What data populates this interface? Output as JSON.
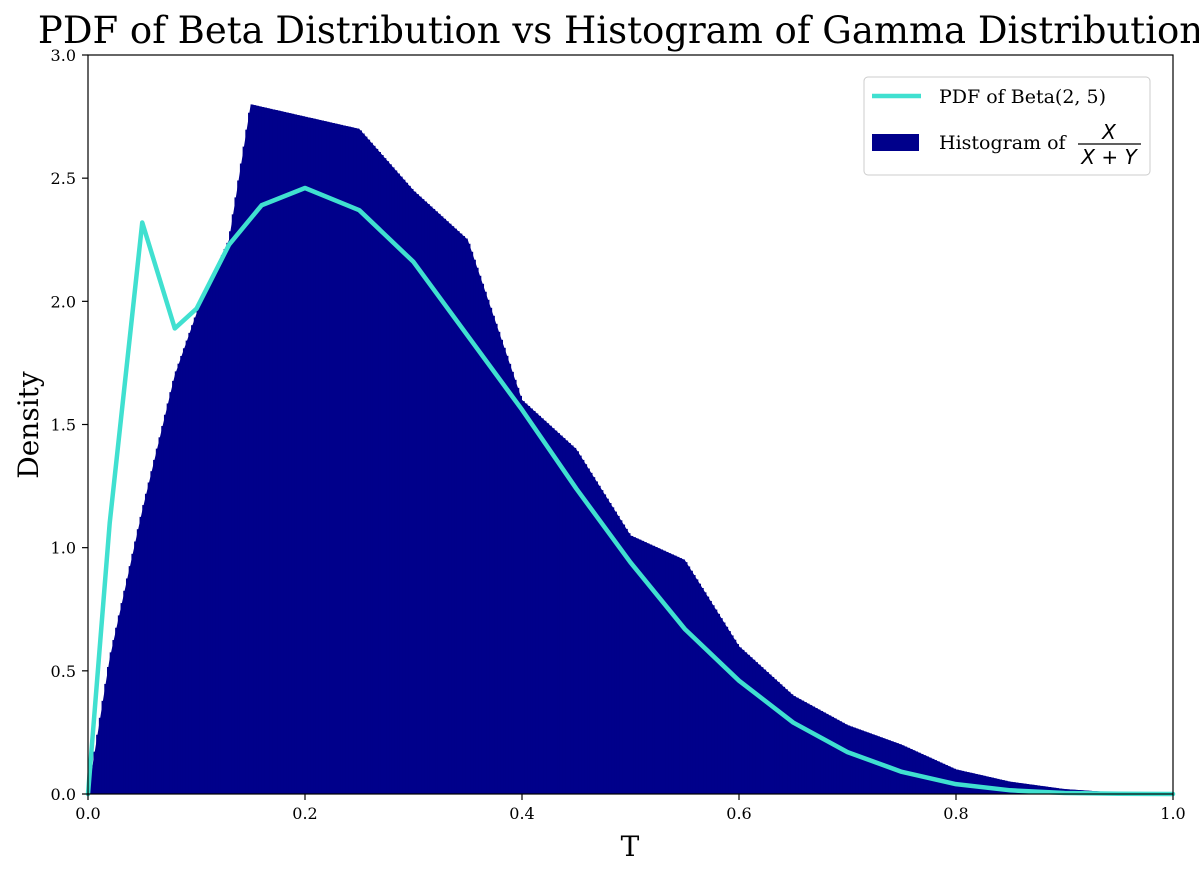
{
  "chart_data": {
    "type": "bar",
    "title": "PDF of Beta Distribution vs Histogram of Gamma Distributions",
    "xlabel": "T",
    "ylabel": "Density",
    "xlim": [
      0.0,
      1.0
    ],
    "ylim": [
      0.0,
      3.0
    ],
    "xticks": [
      "0.0",
      "0.2",
      "0.4",
      "0.6",
      "0.8",
      "1.0"
    ],
    "yticks": [
      "0.0",
      "0.5",
      "1.0",
      "1.5",
      "2.0",
      "2.5",
      "3.0"
    ],
    "grid": false,
    "legend_position": "top-right",
    "colors": {
      "histogram": "#00008b",
      "pdf": "#40e0d0"
    },
    "series": [
      {
        "name": "PDF of Beta(2, 5)",
        "type": "line",
        "alpha": 2,
        "beta": 5,
        "x": [
          0.0,
          0.02,
          0.05,
          0.08,
          0.1,
          0.13,
          0.16,
          0.2,
          0.25,
          0.3,
          0.35,
          0.4,
          0.45,
          0.5,
          0.55,
          0.6,
          0.65,
          0.7,
          0.75,
          0.8,
          0.85,
          0.9,
          0.95,
          1.0
        ],
        "values": [
          0.0,
          1.1,
          2.32,
          1.89,
          1.97,
          2.23,
          2.39,
          2.46,
          2.37,
          2.16,
          1.86,
          1.56,
          1.24,
          0.94,
          0.67,
          0.46,
          0.29,
          0.17,
          0.09,
          0.04,
          0.015,
          0.004,
          0.001,
          0.0
        ]
      },
      {
        "name": "Histogram of X/(X+Y)",
        "legend_text": "Histogram of",
        "legend_frac_num": "X",
        "legend_frac_den": "X + Y",
        "type": "bar",
        "x": [
          0.0,
          0.02,
          0.05,
          0.08,
          0.1,
          0.13,
          0.15,
          0.2,
          0.25,
          0.3,
          0.35,
          0.4,
          0.45,
          0.5,
          0.55,
          0.6,
          0.65,
          0.7,
          0.75,
          0.8,
          0.85,
          0.9,
          0.95,
          1.0
        ],
        "values": [
          0.0,
          0.55,
          1.15,
          1.7,
          1.95,
          2.25,
          2.8,
          2.75,
          2.7,
          2.45,
          2.25,
          1.6,
          1.4,
          1.05,
          0.95,
          0.6,
          0.4,
          0.28,
          0.2,
          0.1,
          0.05,
          0.02,
          0.005,
          0.0
        ]
      }
    ]
  }
}
